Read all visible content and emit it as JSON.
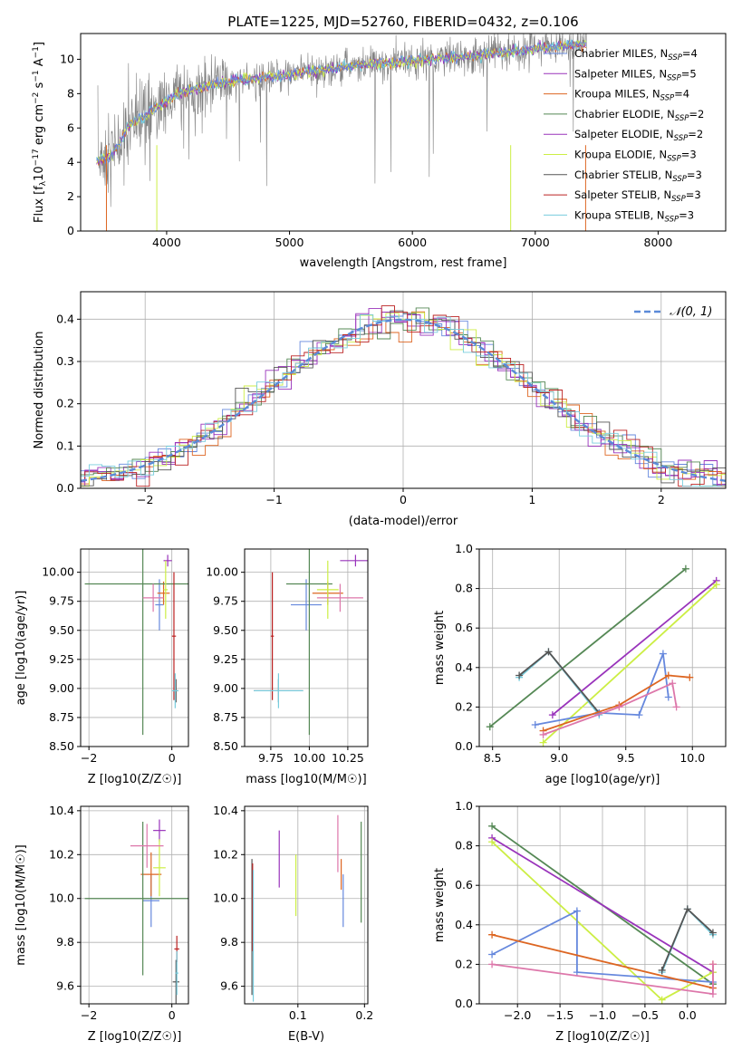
{
  "figure_title": "PLATE=1225, MJD=52760, FIBERID=0432, z=0.106",
  "colors": {
    "data": "#808080",
    "cm": "#6688dd",
    "sm": "#9933bb",
    "km": "#dd6622",
    "ce": "#558855",
    "se": "#9933bb",
    "ke": "#ccee44",
    "cs": "#555555",
    "ss": "#bb2222",
    "ks": "#77ccdd",
    "pk": "#dd77aa",
    "normal": "#5b8ad8"
  },
  "legend_top": [
    {
      "prefix": "Chabrier MILES, N",
      "sub": "SSP",
      "suffix": "=4",
      "color_key": "cm"
    },
    {
      "prefix": "Salpeter MILES, N",
      "sub": "SSP",
      "suffix": "=5",
      "color_key": "sm"
    },
    {
      "prefix": "Kroupa MILES, N",
      "sub": "SSP",
      "suffix": "=4",
      "color_key": "km"
    },
    {
      "prefix": "Chabrier ELODIE, N",
      "sub": "SSP",
      "suffix": "=2",
      "color_key": "ce"
    },
    {
      "prefix": "Salpeter ELODIE, N",
      "sub": "SSP",
      "suffix": "=2",
      "color_key": "se"
    },
    {
      "prefix": "Kroupa ELODIE, N",
      "sub": "SSP",
      "suffix": "=3",
      "color_key": "ke"
    },
    {
      "prefix": "Chabrier STELIB, N",
      "sub": "SSP",
      "suffix": "=3",
      "color_key": "cs"
    },
    {
      "prefix": "Salpeter STELIB, N",
      "sub": "SSP",
      "suffix": "=3",
      "color_key": "ss"
    },
    {
      "prefix": "Kroupa STELIB, N",
      "sub": "SSP",
      "suffix": "=3",
      "color_key": "ks"
    }
  ],
  "normal_legend": "𝒩(0, 1)",
  "chart_data": [
    {
      "id": "spectrum",
      "type": "line",
      "xlabel": "wavelength [Angstrom, rest frame]",
      "ylabel_parts": [
        "Flux [f",
        "λ",
        "10",
        "−17",
        " erg cm",
        "−2",
        " s",
        "−1",
        " A",
        "−1",
        "]"
      ],
      "xlim": [
        3300,
        8550
      ],
      "ylim": [
        0,
        11.5
      ],
      "xticks": [
        4000,
        5000,
        6000,
        7000,
        8000
      ],
      "yticks": [
        0,
        2,
        4,
        6,
        8,
        10
      ],
      "model_trend": {
        "x": [
          3430,
          3550,
          3700,
          3900,
          4100,
          4300,
          4600,
          5000,
          5500,
          6000,
          6500,
          7000,
          7400
        ],
        "y": [
          4.1,
          4.4,
          6.2,
          7.1,
          8.0,
          8.4,
          8.8,
          9.1,
          9.6,
          9.9,
          10.2,
          10.6,
          10.9
        ]
      }
    },
    {
      "id": "residuals",
      "type": "line",
      "xlabel": "(data-model)/error",
      "ylabel": "Normed distribution",
      "xlim": [
        -2.5,
        2.5
      ],
      "ylim": [
        0,
        0.465
      ],
      "xticks": [
        -2,
        -1,
        0,
        1,
        2
      ],
      "yticks": [
        0.0,
        0.1,
        0.2,
        0.3,
        0.4
      ],
      "series_note": "normal distribution N(0,1) dashed, nine model histograms"
    },
    {
      "id": "age_vs_Z",
      "type": "scatter",
      "xlabel": "Z [log10(Z/Z☉)]",
      "ylabel": "age  [log10(age/yr)]",
      "xlim": [
        -2.2,
        0.4
      ],
      "ylim": [
        8.5,
        10.2
      ],
      "xticks": [
        -2,
        0
      ],
      "yticks": [
        8.5,
        8.75,
        9.0,
        9.25,
        9.5,
        9.75,
        10.0
      ],
      "points": [
        {
          "c": "cm",
          "x": -0.3,
          "y": 9.72,
          "xe": 0.1,
          "ye": 0.22
        },
        {
          "c": "sm",
          "x": -0.1,
          "y": 10.1,
          "xe": 0.1,
          "ye": 0.05
        },
        {
          "c": "km",
          "x": -0.2,
          "y": 9.82,
          "xe": 0.15,
          "ye": 0.1
        },
        {
          "c": "ce",
          "x": -0.7,
          "y": 9.9,
          "xe": 1.4,
          "ye": 1.3
        },
        {
          "c": "ke",
          "x": -0.15,
          "y": 9.85,
          "xe": 0.05,
          "ye": 0.25
        },
        {
          "c": "cs",
          "x": 0.1,
          "y": 8.98,
          "xe": 0.05,
          "ye": 0.1
        },
        {
          "c": "ss",
          "x": 0.05,
          "y": 9.45,
          "xe": 0.05,
          "ye": 0.55
        },
        {
          "c": "ks",
          "x": 0.08,
          "y": 8.98,
          "xe": 0.08,
          "ye": 0.15
        },
        {
          "c": "pk",
          "x": -0.45,
          "y": 9.78,
          "xe": 0.25,
          "ye": 0.12
        }
      ]
    },
    {
      "id": "age_vs_mass",
      "type": "scatter",
      "xlabel": "mass [log10(M/M☉)]",
      "xlim": [
        9.58,
        10.38
      ],
      "ylim": [
        8.5,
        10.2
      ],
      "xticks": [
        9.75,
        10.0,
        10.25
      ],
      "xtick_labels": [
        "9.75",
        "10.00",
        "10.25"
      ],
      "yticks": [
        8.5,
        8.75,
        9.0,
        9.25,
        9.5,
        9.75,
        10.0
      ],
      "points": [
        {
          "c": "cm",
          "x": 9.98,
          "y": 9.72,
          "xe": 0.1,
          "ye": 0.22
        },
        {
          "c": "sm",
          "x": 10.3,
          "y": 10.1,
          "xe": 0.1,
          "ye": 0.05
        },
        {
          "c": "km",
          "x": 10.12,
          "y": 9.82,
          "xe": 0.1,
          "ye": 0.1
        },
        {
          "c": "ce",
          "x": 10.0,
          "y": 9.9,
          "xe": 0.15,
          "ye": 1.3
        },
        {
          "c": "ke",
          "x": 10.12,
          "y": 9.85,
          "xe": 0.07,
          "ye": 0.25
        },
        {
          "c": "cs",
          "x": 9.8,
          "y": 8.98,
          "xe": 0.16,
          "ye": 0.1
        },
        {
          "c": "ss",
          "x": 9.76,
          "y": 9.45,
          "xe": 0.01,
          "ye": 0.55
        },
        {
          "c": "ks",
          "x": 9.8,
          "y": 8.98,
          "xe": 0.16,
          "ye": 0.15
        },
        {
          "c": "pk",
          "x": 10.2,
          "y": 9.78,
          "xe": 0.15,
          "ye": 0.12
        }
      ]
    },
    {
      "id": "weight_vs_age",
      "type": "line",
      "xlabel": "age  [log10(age/yr)]",
      "ylabel": "mass weight",
      "xlim": [
        8.4,
        10.25
      ],
      "ylim": [
        0,
        1
      ],
      "xticks": [
        8.5,
        9.0,
        9.5,
        10.0
      ],
      "yticks": [
        0.0,
        0.2,
        0.4,
        0.6,
        0.8,
        1.0
      ],
      "series": [
        {
          "c": "ce",
          "x": [
            8.48,
            9.95
          ],
          "y": [
            0.1,
            0.9
          ]
        },
        {
          "c": "sm",
          "x": [
            8.95,
            10.18
          ],
          "y": [
            0.16,
            0.84
          ]
        },
        {
          "c": "ke",
          "x": [
            8.88,
            10.18
          ],
          "y": [
            0.02,
            0.82
          ]
        },
        {
          "c": "ks",
          "x": [
            8.7,
            8.92,
            9.3
          ],
          "y": [
            0.35,
            0.48,
            0.16
          ]
        },
        {
          "c": "cs",
          "x": [
            8.7,
            8.92,
            9.3
          ],
          "y": [
            0.36,
            0.48,
            0.17
          ]
        },
        {
          "c": "cm",
          "x": [
            8.82,
            9.3,
            9.6,
            9.78,
            9.82
          ],
          "y": [
            0.11,
            0.17,
            0.16,
            0.47,
            0.25
          ]
        },
        {
          "c": "km",
          "x": [
            8.88,
            9.45,
            9.82,
            9.98
          ],
          "y": [
            0.08,
            0.21,
            0.36,
            0.35
          ]
        },
        {
          "c": "pk",
          "x": [
            8.88,
            9.45,
            9.85,
            9.88
          ],
          "y": [
            0.06,
            0.2,
            0.32,
            0.2
          ]
        }
      ]
    },
    {
      "id": "mass_vs_Z",
      "type": "scatter",
      "xlabel": "Z [log10(Z/Z☉)]",
      "ylabel": "mass [log10(M/M☉)]",
      "xlim": [
        -2.2,
        0.4
      ],
      "ylim": [
        9.52,
        10.42
      ],
      "xticks": [
        -2,
        0
      ],
      "yticks": [
        9.6,
        9.8,
        10.0,
        10.2,
        10.4
      ],
      "points": [
        {
          "c": "cm",
          "x": -0.5,
          "y": 9.99,
          "xe": 0.2,
          "ye": 0.12
        },
        {
          "c": "sm",
          "x": -0.3,
          "y": 10.31,
          "xe": 0.15,
          "ye": 0.05
        },
        {
          "c": "km",
          "x": -0.5,
          "y": 10.11,
          "xe": 0.25,
          "ye": 0.1
        },
        {
          "c": "ce",
          "x": -0.7,
          "y": 10.0,
          "xe": 1.4,
          "ye": 0.35
        },
        {
          "c": "ke",
          "x": -0.3,
          "y": 10.14,
          "xe": 0.15,
          "ye": 0.13
        },
        {
          "c": "cs",
          "x": 0.1,
          "y": 9.62,
          "xe": 0.08,
          "ye": 0.1
        },
        {
          "c": "ss",
          "x": 0.12,
          "y": 9.77,
          "xe": 0.06,
          "ye": 0.06
        },
        {
          "c": "ks",
          "x": 0.12,
          "y": 9.66,
          "xe": 0.04,
          "ye": 0.1
        },
        {
          "c": "pk",
          "x": -0.6,
          "y": 10.24,
          "xe": 0.4,
          "ye": 0.1
        }
      ]
    },
    {
      "id": "mass_vs_ebv",
      "type": "scatter",
      "xlabel": "E(B-V)",
      "xlim": [
        0.02,
        0.205
      ],
      "ylim": [
        9.52,
        10.42
      ],
      "xticks": [
        0.1,
        0.2
      ],
      "xtick_labels": [
        "0.1",
        "0.2"
      ],
      "yticks": [
        9.6,
        9.8,
        10.0,
        10.2,
        10.4
      ],
      "points": [
        {
          "c": "cm",
          "x": 0.168,
          "y": 9.99,
          "ye": 0.12
        },
        {
          "c": "sm",
          "x": 0.072,
          "y": 10.18,
          "ye": 0.13
        },
        {
          "c": "km",
          "x": 0.165,
          "y": 10.11,
          "ye": 0.07
        },
        {
          "c": "ce",
          "x": 0.195,
          "y": 10.12,
          "ye": 0.23
        },
        {
          "c": "ke",
          "x": 0.097,
          "y": 10.06,
          "ye": 0.14
        },
        {
          "c": "cs",
          "x": 0.031,
          "y": 9.87,
          "ye": 0.31
        },
        {
          "c": "ss",
          "x": 0.032,
          "y": 9.96,
          "ye": 0.2
        },
        {
          "c": "ks",
          "x": 0.033,
          "y": 9.83,
          "ye": 0.3
        },
        {
          "c": "pk",
          "x": 0.16,
          "y": 10.25,
          "ye": 0.13
        }
      ]
    },
    {
      "id": "weight_vs_Z",
      "type": "line",
      "xlabel": "Z [log10(Z/Z☉)]",
      "ylabel": "mass weight",
      "xlim": [
        -2.45,
        0.45
      ],
      "ylim": [
        0,
        1
      ],
      "xticks": [
        -2.0,
        -1.5,
        -1.0,
        -0.5,
        0.0
      ],
      "xtick_labels": [
        "−2.0",
        "−1.5",
        "−1.0",
        "−0.5",
        "0.0"
      ],
      "yticks": [
        0.0,
        0.2,
        0.4,
        0.6,
        0.8,
        1.0
      ],
      "series": [
        {
          "c": "ce",
          "x": [
            -2.3,
            0.3
          ],
          "y": [
            0.9,
            0.1
          ]
        },
        {
          "c": "sm",
          "x": [
            -2.3,
            0.3
          ],
          "y": [
            0.84,
            0.16
          ]
        },
        {
          "c": "ke",
          "x": [
            -2.3,
            -0.3,
            0.3
          ],
          "y": [
            0.82,
            0.02,
            0.16
          ]
        },
        {
          "c": "ks",
          "x": [
            -0.3,
            0.0,
            0.3
          ],
          "y": [
            0.16,
            0.48,
            0.35
          ]
        },
        {
          "c": "cs",
          "x": [
            -0.3,
            0.0,
            0.3
          ],
          "y": [
            0.17,
            0.48,
            0.36
          ]
        },
        {
          "c": "cm",
          "x": [
            -2.3,
            -1.3,
            -1.3,
            0.3
          ],
          "y": [
            0.25,
            0.47,
            0.16,
            0.11
          ]
        },
        {
          "c": "km",
          "x": [
            -2.3,
            0.3,
            0.3
          ],
          "y": [
            0.35,
            0.08,
            0.2
          ]
        },
        {
          "c": "pk",
          "x": [
            -2.3,
            0.3,
            0.3
          ],
          "y": [
            0.2,
            0.05,
            0.2
          ]
        }
      ]
    }
  ]
}
